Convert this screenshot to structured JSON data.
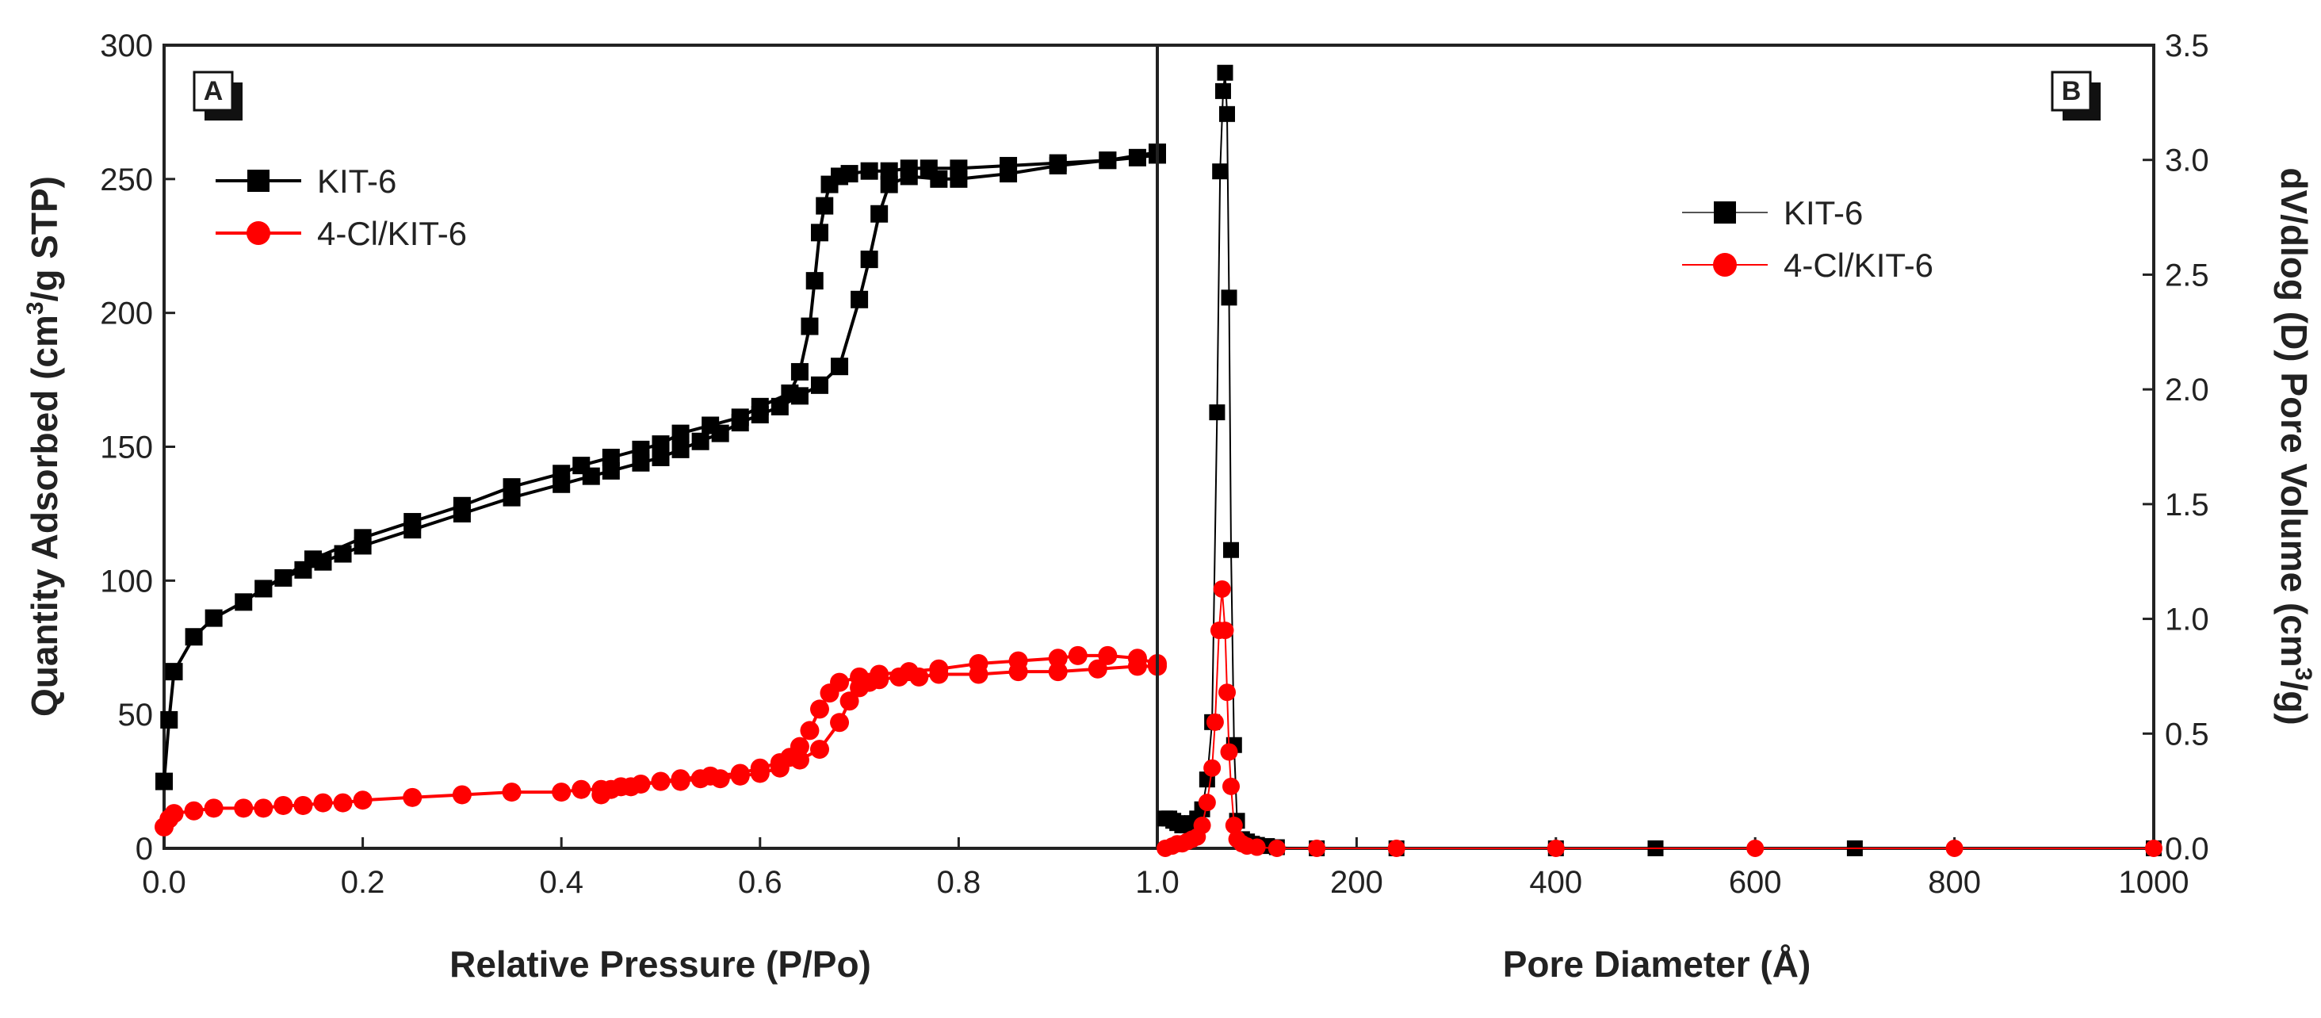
{
  "chart_data": [
    {
      "panel": "A",
      "type": "line",
      "xlabel": "Relative Pressure (P/Po)",
      "ylabel_parts": [
        "Quantity Adsorbed (cm",
        "3",
        "/g STP)"
      ],
      "xlim": [
        0.0,
        1.0
      ],
      "ylim": [
        0,
        300
      ],
      "xticks": [
        "0.0",
        "0.2",
        "0.4",
        "0.6",
        "0.8",
        "1.0"
      ],
      "yticks": [
        "0",
        "50",
        "100",
        "150",
        "200",
        "250",
        "300"
      ],
      "legend_position": "top-left",
      "series": [
        {
          "name": "KIT-6",
          "color": "#000000",
          "marker": "square",
          "segments": [
            {
              "x": [
                0.0,
                0.005,
                0.01,
                0.03,
                0.05,
                0.08,
                0.1,
                0.12,
                0.14,
                0.16,
                0.18,
                0.2,
                0.25,
                0.3,
                0.35,
                0.4,
                0.43,
                0.45,
                0.48,
                0.5,
                0.52,
                0.54,
                0.56,
                0.58,
                0.6,
                0.62,
                0.64,
                0.66,
                0.68,
                0.7,
                0.71,
                0.72,
                0.73,
                0.75,
                0.78,
                0.8,
                0.85,
                0.9,
                0.95,
                1.0
              ],
              "y": [
                25,
                48,
                66,
                79,
                86,
                92,
                97,
                101,
                104,
                107,
                110,
                113,
                119,
                125,
                131,
                136,
                139,
                141,
                144,
                146,
                149,
                152,
                155,
                159,
                162,
                165,
                169,
                173,
                180,
                205,
                220,
                237,
                248,
                251,
                250,
                250,
                252,
                255,
                257,
                260
              ]
            },
            {
              "x": [
                1.0,
                0.98,
                0.95,
                0.9,
                0.85,
                0.8,
                0.77,
                0.75,
                0.73,
                0.71,
                0.69,
                0.68,
                0.67,
                0.665,
                0.66,
                0.655,
                0.65,
                0.64,
                0.63,
                0.6,
                0.58,
                0.55,
                0.52,
                0.5,
                0.48,
                0.45,
                0.42,
                0.4,
                0.35,
                0.3,
                0.25,
                0.2,
                0.15,
                0.1
              ],
              "y": [
                259,
                258,
                257,
                256,
                255,
                254,
                254,
                254,
                253,
                253,
                252,
                251,
                248,
                240,
                230,
                212,
                195,
                178,
                170,
                165,
                161,
                158,
                155,
                151,
                149,
                146,
                143,
                140,
                135,
                128,
                122,
                116,
                108,
                97
              ]
            }
          ]
        },
        {
          "name": "4-Cl/KIT-6",
          "color": "#ff0000",
          "marker": "circle",
          "segments": [
            {
              "x": [
                0.0,
                0.005,
                0.01,
                0.03,
                0.05,
                0.08,
                0.1,
                0.12,
                0.14,
                0.16,
                0.18,
                0.2,
                0.25,
                0.3,
                0.35,
                0.4,
                0.42,
                0.44,
                0.46,
                0.48,
                0.5,
                0.52,
                0.54,
                0.56,
                0.58,
                0.6,
                0.62,
                0.64,
                0.66,
                0.68,
                0.69,
                0.7,
                0.71,
                0.72,
                0.74,
                0.76,
                0.78,
                0.82,
                0.86,
                0.9,
                0.94,
                0.98,
                1.0
              ],
              "y": [
                8,
                11,
                13,
                14,
                15,
                15,
                15,
                16,
                16,
                17,
                17,
                18,
                19,
                20,
                21,
                21,
                22,
                22,
                23,
                24,
                25,
                25,
                26,
                26,
                27,
                28,
                30,
                33,
                37,
                47,
                55,
                60,
                62,
                63,
                64,
                64,
                65,
                65,
                66,
                66,
                67,
                68,
                68
              ]
            },
            {
              "x": [
                1.0,
                0.98,
                0.95,
                0.92,
                0.9,
                0.86,
                0.82,
                0.78,
                0.75,
                0.72,
                0.7,
                0.68,
                0.67,
                0.66,
                0.65,
                0.64,
                0.63,
                0.62,
                0.6,
                0.58,
                0.55,
                0.52,
                0.5,
                0.47,
                0.45,
                0.44
              ],
              "y": [
                69,
                71,
                72,
                72,
                71,
                70,
                69,
                67,
                66,
                65,
                64,
                62,
                58,
                52,
                44,
                38,
                34,
                32,
                30,
                28,
                27,
                26,
                25,
                23,
                22,
                20
              ]
            }
          ]
        }
      ]
    },
    {
      "panel": "B",
      "type": "line",
      "xlabel": "Pore Diameter (Å)",
      "ylabel_parts": [
        "dV/dlog (D) Pore Volume (cm",
        "3",
        "/g)"
      ],
      "xlim": [
        0,
        1000
      ],
      "ylim": [
        0.0,
        3.5
      ],
      "xticks": [
        "200",
        "400",
        "600",
        "800",
        "1000"
      ],
      "yticks": [
        "0.0",
        "0.5",
        "1.0",
        "1.5",
        "2.0",
        "2.5",
        "3.0",
        "3.5"
      ],
      "legend_position": "top-right",
      "series": [
        {
          "name": "KIT-6",
          "color": "#000000",
          "marker": "square",
          "segments": [
            {
              "x": [
                8,
                12,
                16,
                20,
                25,
                30,
                35,
                40,
                45,
                50,
                55,
                60,
                63,
                66,
                68,
                70,
                72,
                74,
                77,
                80,
                85,
                90,
                95,
                100,
                110,
                120,
                160,
                240,
                400,
                500,
                700,
                1000
              ],
              "y": [
                0.13,
                0.13,
                0.12,
                0.11,
                0.1,
                0.1,
                0.11,
                0.13,
                0.17,
                0.3,
                0.55,
                1.9,
                2.95,
                3.3,
                3.38,
                3.2,
                2.4,
                1.3,
                0.45,
                0.12,
                0.04,
                0.03,
                0.02,
                0.015,
                0.01,
                0.005,
                0.0,
                0.0,
                0.0,
                0.0,
                0.0,
                0.0
              ]
            }
          ]
        },
        {
          "name": "4-Cl/KIT-6",
          "color": "#ff0000",
          "marker": "circle",
          "segments": [
            {
              "x": [
                8,
                15,
                20,
                25,
                30,
                35,
                40,
                45,
                50,
                55,
                58,
                62,
                65,
                68,
                70,
                72,
                74,
                77,
                80,
                85,
                90,
                100,
                120,
                160,
                240,
                400,
                600,
                800,
                1000
              ],
              "y": [
                0.0,
                0.01,
                0.02,
                0.02,
                0.03,
                0.04,
                0.05,
                0.1,
                0.2,
                0.35,
                0.55,
                0.95,
                1.13,
                0.95,
                0.68,
                0.42,
                0.27,
                0.1,
                0.04,
                0.02,
                0.01,
                0.005,
                0.0,
                0.0,
                0.0,
                0.0,
                0.0,
                0.0,
                0.0
              ]
            }
          ]
        }
      ]
    }
  ]
}
